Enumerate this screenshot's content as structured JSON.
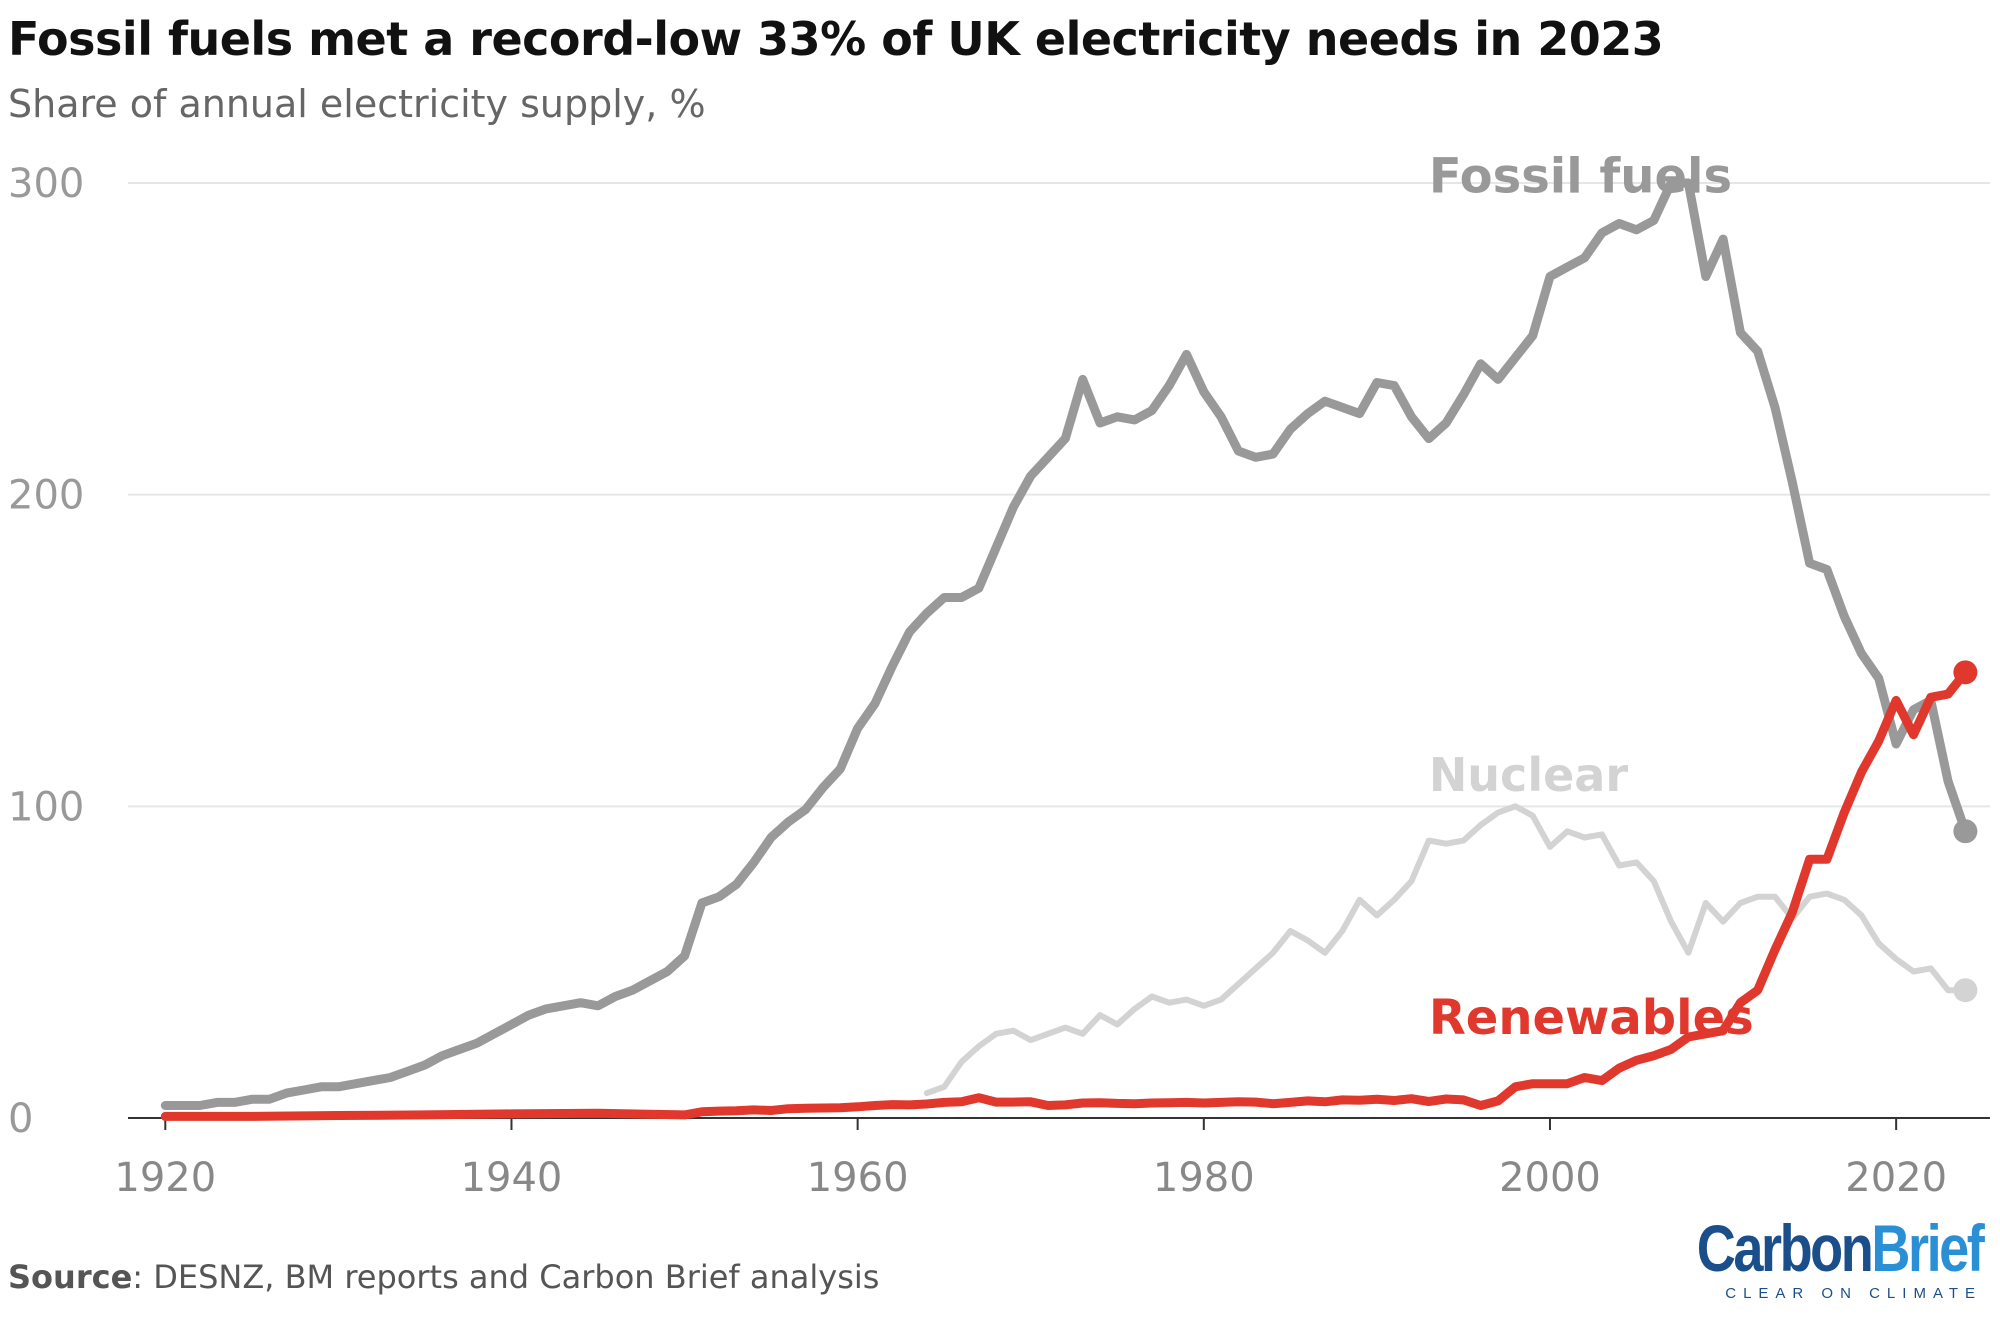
{
  "header": {
    "title": "Fossil fuels met a record-low 33% of UK electricity needs in 2023",
    "subtitle": "Share of annual electricity supply, %"
  },
  "footer": {
    "source_label": "Source",
    "source_text": ": DESNZ, BM reports and Carbon Brief analysis",
    "logo_carbon": "Carbon",
    "logo_brief": "Brief",
    "logo_tagline": "CLEAR ON CLIMATE"
  },
  "colors": {
    "fossil": "#999999",
    "nuclear": "#d3d3d3",
    "renewables": "#e0382d",
    "grid": "#e6e6e6",
    "axis_text": "#999999"
  },
  "chart_data": {
    "type": "line",
    "title": "Fossil fuels met a record-low 33% of UK electricity needs in 2023",
    "subtitle": "Share of annual electricity supply, %",
    "xlabel": "",
    "ylabel": "",
    "xlim": [
      1919,
      2026
    ],
    "ylim": [
      0,
      300
    ],
    "xticks": [
      1920,
      1940,
      1960,
      1980,
      2000,
      2020
    ],
    "yticks": [
      0,
      100,
      200,
      300
    ],
    "grid": true,
    "series": [
      {
        "name": "Fossil fuels",
        "label_year": 1993,
        "label_value": 297,
        "end_marker": true,
        "points": [
          [
            1920,
            4
          ],
          [
            1921,
            4
          ],
          [
            1922,
            4
          ],
          [
            1923,
            5
          ],
          [
            1924,
            5
          ],
          [
            1925,
            6
          ],
          [
            1926,
            6
          ],
          [
            1927,
            8
          ],
          [
            1928,
            9
          ],
          [
            1929,
            10
          ],
          [
            1930,
            10
          ],
          [
            1931,
            11
          ],
          [
            1932,
            12
          ],
          [
            1933,
            13
          ],
          [
            1934,
            15
          ],
          [
            1935,
            17
          ],
          [
            1936,
            20
          ],
          [
            1937,
            22
          ],
          [
            1938,
            24
          ],
          [
            1939,
            27
          ],
          [
            1940,
            30
          ],
          [
            1941,
            33
          ],
          [
            1942,
            35
          ],
          [
            1943,
            36
          ],
          [
            1944,
            37
          ],
          [
            1945,
            36
          ],
          [
            1946,
            39
          ],
          [
            1947,
            41
          ],
          [
            1948,
            44
          ],
          [
            1949,
            47
          ],
          [
            1950,
            52
          ],
          [
            1951,
            69
          ],
          [
            1952,
            71
          ],
          [
            1953,
            75
          ],
          [
            1954,
            82
          ],
          [
            1955,
            90
          ],
          [
            1956,
            95
          ],
          [
            1957,
            99
          ],
          [
            1958,
            106
          ],
          [
            1959,
            112
          ],
          [
            1960,
            125
          ],
          [
            1961,
            133
          ],
          [
            1962,
            145
          ],
          [
            1963,
            156
          ],
          [
            1964,
            162
          ],
          [
            1965,
            167
          ],
          [
            1966,
            167
          ],
          [
            1967,
            170
          ],
          [
            1968,
            183
          ],
          [
            1969,
            196
          ],
          [
            1970,
            206
          ],
          [
            1971,
            212
          ],
          [
            1972,
            218
          ],
          [
            1973,
            237
          ],
          [
            1974,
            223
          ],
          [
            1975,
            225
          ],
          [
            1976,
            224
          ],
          [
            1977,
            227
          ],
          [
            1978,
            235
          ],
          [
            1979,
            245
          ],
          [
            1980,
            233
          ],
          [
            1981,
            225
          ],
          [
            1982,
            214
          ],
          [
            1983,
            212
          ],
          [
            1984,
            213
          ],
          [
            1985,
            221
          ],
          [
            1986,
            226
          ],
          [
            1987,
            230
          ],
          [
            1988,
            228
          ],
          [
            1989,
            226
          ],
          [
            1990,
            236
          ],
          [
            1991,
            235
          ],
          [
            1992,
            225
          ],
          [
            1993,
            218
          ],
          [
            1994,
            223
          ],
          [
            1995,
            232
          ],
          [
            1996,
            242
          ],
          [
            1997,
            237
          ],
          [
            1998,
            244
          ],
          [
            1999,
            251
          ],
          [
            2000,
            270
          ],
          [
            2001,
            273
          ],
          [
            2002,
            276
          ],
          [
            2003,
            284
          ],
          [
            2004,
            287
          ],
          [
            2005,
            285
          ],
          [
            2006,
            288
          ],
          [
            2007,
            300
          ],
          [
            2008,
            300
          ],
          [
            2009,
            270
          ],
          [
            2010,
            282
          ],
          [
            2011,
            252
          ],
          [
            2012,
            246
          ],
          [
            2013,
            228
          ],
          [
            2014,
            204
          ],
          [
            2015,
            178
          ],
          [
            2016,
            176
          ],
          [
            2017,
            161
          ],
          [
            2018,
            149
          ],
          [
            2019,
            141
          ],
          [
            2020,
            120
          ],
          [
            2021,
            131
          ],
          [
            2022,
            134
          ],
          [
            2023,
            108
          ],
          [
            2024,
            92
          ]
        ]
      },
      {
        "name": "Nuclear",
        "label_year": 1993,
        "label_value": 105,
        "end_marker": true,
        "points": [
          [
            1964,
            8
          ],
          [
            1965,
            10
          ],
          [
            1966,
            18
          ],
          [
            1967,
            23
          ],
          [
            1968,
            27
          ],
          [
            1969,
            28
          ],
          [
            1970,
            25
          ],
          [
            1971,
            27
          ],
          [
            1972,
            29
          ],
          [
            1973,
            27
          ],
          [
            1974,
            33
          ],
          [
            1975,
            30
          ],
          [
            1976,
            35
          ],
          [
            1977,
            39
          ],
          [
            1978,
            37
          ],
          [
            1979,
            38
          ],
          [
            1980,
            36
          ],
          [
            1981,
            38
          ],
          [
            1982,
            43
          ],
          [
            1983,
            48
          ],
          [
            1984,
            53
          ],
          [
            1985,
            60
          ],
          [
            1986,
            57
          ],
          [
            1987,
            53
          ],
          [
            1988,
            60
          ],
          [
            1989,
            70
          ],
          [
            1990,
            65
          ],
          [
            1991,
            70
          ],
          [
            1992,
            76
          ],
          [
            1993,
            89
          ],
          [
            1994,
            88
          ],
          [
            1995,
            89
          ],
          [
            1996,
            94
          ],
          [
            1997,
            98
          ],
          [
            1998,
            100
          ],
          [
            1999,
            97
          ],
          [
            2000,
            87
          ],
          [
            2001,
            92
          ],
          [
            2002,
            90
          ],
          [
            2003,
            91
          ],
          [
            2004,
            81
          ],
          [
            2005,
            82
          ],
          [
            2006,
            76
          ],
          [
            2007,
            63
          ],
          [
            2008,
            53
          ],
          [
            2009,
            69
          ],
          [
            2010,
            63
          ],
          [
            2011,
            69
          ],
          [
            2012,
            71
          ],
          [
            2013,
            71
          ],
          [
            2014,
            64
          ],
          [
            2015,
            71
          ],
          [
            2016,
            72
          ],
          [
            2017,
            70
          ],
          [
            2018,
            65
          ],
          [
            2019,
            56
          ],
          [
            2020,
            51
          ],
          [
            2021,
            47
          ],
          [
            2022,
            48
          ],
          [
            2023,
            41
          ],
          [
            2024,
            41
          ]
        ]
      },
      {
        "name": "Renewables",
        "label_year": 1993,
        "label_value": 27,
        "end_marker": true,
        "points": [
          [
            1920,
            0.5
          ],
          [
            1925,
            0.5
          ],
          [
            1930,
            0.8
          ],
          [
            1935,
            1
          ],
          [
            1940,
            1.3
          ],
          [
            1945,
            1.5
          ],
          [
            1950,
            1
          ],
          [
            1951,
            2
          ],
          [
            1952,
            2.2
          ],
          [
            1953,
            2.3
          ],
          [
            1954,
            2.6
          ],
          [
            1955,
            2.4
          ],
          [
            1956,
            3
          ],
          [
            1957,
            3.1
          ],
          [
            1958,
            3.2
          ],
          [
            1959,
            3.3
          ],
          [
            1960,
            3.6
          ],
          [
            1961,
            4
          ],
          [
            1962,
            4.3
          ],
          [
            1963,
            4.2
          ],
          [
            1964,
            4.5
          ],
          [
            1965,
            5
          ],
          [
            1966,
            5.2
          ],
          [
            1967,
            6.5
          ],
          [
            1968,
            5.1
          ],
          [
            1969,
            5.1
          ],
          [
            1970,
            5.2
          ],
          [
            1971,
            4
          ],
          [
            1972,
            4.2
          ],
          [
            1973,
            4.8
          ],
          [
            1974,
            4.9
          ],
          [
            1975,
            4.7
          ],
          [
            1976,
            4.6
          ],
          [
            1977,
            4.8
          ],
          [
            1978,
            4.9
          ],
          [
            1979,
            5
          ],
          [
            1980,
            4.8
          ],
          [
            1981,
            5
          ],
          [
            1982,
            5.2
          ],
          [
            1983,
            5.1
          ],
          [
            1984,
            4.6
          ],
          [
            1985,
            5
          ],
          [
            1986,
            5.5
          ],
          [
            1987,
            5.2
          ],
          [
            1988,
            5.8
          ],
          [
            1989,
            5.7
          ],
          [
            1990,
            6
          ],
          [
            1991,
            5.6
          ],
          [
            1992,
            6.2
          ],
          [
            1993,
            5.3
          ],
          [
            1994,
            6.1
          ],
          [
            1995,
            5.8
          ],
          [
            1996,
            4
          ],
          [
            1997,
            5.5
          ],
          [
            1998,
            10
          ],
          [
            1999,
            11
          ],
          [
            2000,
            11
          ],
          [
            2001,
            11
          ],
          [
            2002,
            13
          ],
          [
            2003,
            12
          ],
          [
            2004,
            16
          ],
          [
            2005,
            18.5
          ],
          [
            2006,
            20
          ],
          [
            2007,
            22
          ],
          [
            2008,
            26
          ],
          [
            2009,
            27
          ],
          [
            2010,
            28
          ],
          [
            2011,
            37
          ],
          [
            2012,
            41
          ],
          [
            2013,
            54
          ],
          [
            2014,
            66
          ],
          [
            2015,
            83
          ],
          [
            2016,
            83
          ],
          [
            2017,
            98
          ],
          [
            2018,
            111
          ],
          [
            2019,
            121
          ],
          [
            2020,
            134
          ],
          [
            2021,
            123
          ],
          [
            2022,
            135
          ],
          [
            2023,
            136
          ],
          [
            2024,
            143
          ]
        ]
      }
    ]
  }
}
